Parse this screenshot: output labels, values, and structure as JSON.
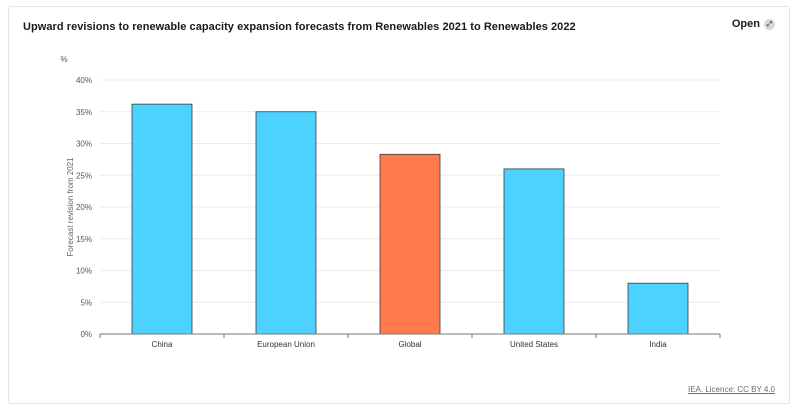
{
  "header": {
    "title": "Upward revisions to renewable capacity expansion forecasts from Renewables 2021 to Renewables 2022",
    "open_label": "Open",
    "open_icon": "expand-icon"
  },
  "footer": {
    "credit": "IEA. Licence: CC BY 4.0"
  },
  "colors": {
    "default_bar": "#4dd2ff",
    "highlight_bar": "#ff7a4c",
    "bar_stroke": "#3a3a3a"
  },
  "chart_data": {
    "type": "bar",
    "title": "",
    "unit": "%",
    "ylabel": "Forecast revision from 2021",
    "xlabel": "",
    "ylim": [
      0,
      40
    ],
    "yticks": [
      0,
      5,
      10,
      15,
      20,
      25,
      30,
      35,
      40
    ],
    "ytick_labels": [
      "0%",
      "5%",
      "10%",
      "15%",
      "20%",
      "25%",
      "30%",
      "35%",
      "40%"
    ],
    "grid": true,
    "categories": [
      "China",
      "European Union",
      "Global",
      "United States",
      "India"
    ],
    "values": [
      36.2,
      35.0,
      28.3,
      26.0,
      8.0
    ],
    "highlight": [
      "Global"
    ]
  }
}
